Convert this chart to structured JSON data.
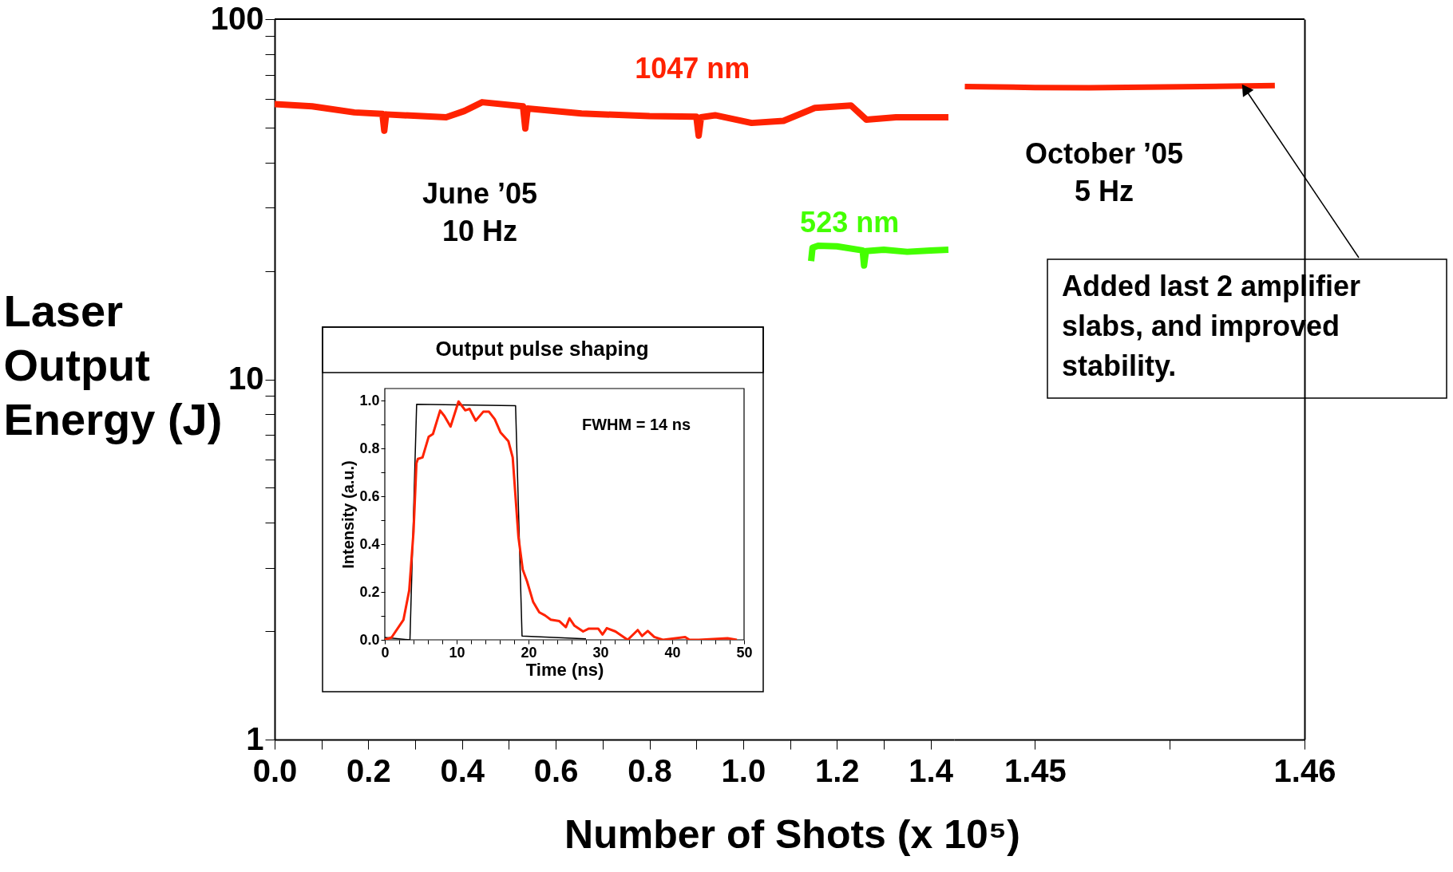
{
  "chart_data": [
    {
      "type": "line",
      "xlabel": "Number of Shots (x 10⁵)",
      "ylabel": "Laser Output Energy (J)",
      "log": "y",
      "grid": false,
      "xlim": [
        0,
        1.45
      ],
      "xticks": [
        {
          "value": 0,
          "label": "0.0"
        },
        {
          "value": 0.1,
          "label": null
        },
        0.2,
        {
          "value": 0.3,
          "label": null
        },
        0.4,
        {
          "value": 0.5,
          "label": null
        },
        0.6,
        {
          "value": 0.7,
          "label": null
        },
        0.8,
        {
          "value": 0.9,
          "label": null
        },
        {
          "value": 1,
          "label": "1.0"
        },
        {
          "value": 1.1,
          "label": null
        },
        1.2,
        {
          "value": 1.3,
          "label": null
        },
        1.4
      ],
      "ylim": [
        1,
        100
      ],
      "yticks": [
        1,
        {
          "value": 2,
          "label": null
        },
        {
          "value": 3,
          "label": null
        },
        {
          "value": 4,
          "label": null
        },
        {
          "value": 5,
          "label": null
        },
        {
          "value": 6,
          "label": null
        },
        {
          "value": 7,
          "label": null
        },
        {
          "value": 8,
          "label": null
        },
        {
          "value": 9,
          "label": null
        },
        10,
        {
          "value": 20,
          "label": null
        },
        {
          "value": 30,
          "label": null
        },
        {
          "value": 40,
          "label": null
        },
        {
          "value": 50,
          "label": null
        },
        {
          "value": 60,
          "label": null
        },
        {
          "value": 70,
          "label": null
        },
        {
          "value": 80,
          "label": null
        },
        {
          "value": 90,
          "label": null
        },
        100
      ],
      "series": [
        {
          "name": "1047 nm",
          "color": "#ff2200",
          "x": [
            0,
            0.08,
            0.17,
            0.23,
            0.234,
            0.238,
            0.366,
            0.405,
            0.443,
            0.53,
            0.535,
            0.54,
            0.655,
            0.8,
            0.9,
            0.905,
            0.91,
            0.94,
            1.018,
            1.086,
            1.153,
            1.23,
            1.263,
            1.326,
            1.438
          ],
          "values": [
            58.1,
            57.3,
            55.1,
            54.6,
            49,
            54.4,
            53.4,
            55.6,
            58.8,
            57.3,
            49.7,
            56.5,
            54.7,
            53.8,
            53.6,
            47.5,
            53.4,
            54.1,
            51.5,
            52.2,
            56.7,
            57.6,
            52.6,
            53.4,
            53.4
          ]
        },
        {
          "name": "523 nm",
          "color": "#44ff00",
          "x": [
            1.145,
            1.148,
            1.16,
            1.2,
            1.255,
            1.258,
            1.262,
            1.3,
            1.35,
            1.4,
            1.438
          ],
          "values": [
            21.3,
            23.2,
            23.5,
            23.4,
            22.8,
            20.7,
            22.7,
            22.9,
            22.6,
            22.8,
            22.9
          ]
        }
      ],
      "annotations": [
        "June ’05\n10 Hz"
      ]
    },
    {
      "type": "line",
      "log": "y",
      "grid": false,
      "tick_labels": "x",
      "xlim": [
        1.447,
        1.46
      ],
      "xticks": [
        1.45,
        {
          "value": 1.455,
          "label": null
        },
        1.46
      ],
      "ylim": [
        1,
        100
      ],
      "yticks": [
        1,
        10,
        100
      ],
      "series": [
        {
          "color": "#ff2200",
          "x": [
            1.4474,
            1.45,
            1.452,
            1.4555,
            1.4589
          ],
          "values": [
            65,
            64.6,
            64.5,
            64.9,
            65.4
          ]
        }
      ],
      "annotations": [
        "October ’05\n5 Hz",
        {
          "text": "Added last 2 amplifier slabs, and improved stability.",
          "x": 1.4578,
          "y": 64
        }
      ]
    },
    {
      "type": "line",
      "title": "Output pulse shaping",
      "xlabel": "Time (ns)",
      "ylabel": "Intensity (a.u.)",
      "grid": false,
      "xlim": [
        0,
        50
      ],
      "xticks": [
        0,
        {
          "value": 2,
          "label": null
        },
        {
          "value": 4,
          "label": null
        },
        {
          "value": 6,
          "label": null
        },
        {
          "value": 8,
          "label": null
        },
        10,
        {
          "value": 12,
          "label": null
        },
        {
          "value": 14,
          "label": null
        },
        {
          "value": 16,
          "label": null
        },
        {
          "value": 18,
          "label": null
        },
        20,
        {
          "value": 22,
          "label": null
        },
        {
          "value": 24,
          "label": null
        },
        {
          "value": 26,
          "label": null
        },
        {
          "value": 28,
          "label": null
        },
        30,
        {
          "value": 32,
          "label": null
        },
        {
          "value": 34,
          "label": null
        },
        {
          "value": 36,
          "label": null
        },
        {
          "value": 38,
          "label": null
        },
        40,
        {
          "value": 42,
          "label": null
        },
        {
          "value": 44,
          "label": null
        },
        {
          "value": 46,
          "label": null
        },
        {
          "value": 48,
          "label": null
        },
        50
      ],
      "ylim": [
        0,
        1.05
      ],
      "yticks": [
        {
          "value": 0,
          "label": "0.0"
        },
        {
          "value": 0.1,
          "label": null
        },
        0.2,
        {
          "value": 0.3,
          "label": null
        },
        0.4,
        {
          "value": 0.5,
          "label": null
        },
        0.6,
        {
          "value": 0.7,
          "label": null
        },
        0.8,
        {
          "value": 0.9,
          "label": null
        },
        {
          "value": 1,
          "label": "1.0"
        }
      ],
      "series": [
        {
          "color": "#000000",
          "x": [
            0,
            3.5,
            4.43,
            18.2,
            19.1,
            28.0
          ],
          "values": [
            0.01,
            0,
            0.984,
            0.978,
            0.016,
            0.004
          ]
        },
        {
          "color": "#ff2200",
          "x": [
            0,
            0.94,
            2.6,
            3.4,
            4.0,
            4.4,
            4.6,
            5.25,
            6.1,
            6.7,
            7.7,
            8.3,
            9.15,
            10.26,
            11.2,
            11.8,
            12.65,
            13.7,
            14.5,
            15.3,
            16.1,
            17.2,
            17.8,
            18.6,
            19.2,
            19.8,
            20.65,
            21.5,
            22.3,
            23.1,
            24.3,
            25.2,
            25.7,
            26.4,
            27.6,
            28.4,
            29.7,
            30.3,
            30.9,
            32.1,
            33.8,
            35.2,
            35.8,
            36.6,
            37.5,
            38.7,
            41.8,
            42.4,
            43.7,
            47.7,
            49
          ],
          "values": [
            0,
            0.01,
            0.084,
            0.207,
            0.454,
            0.737,
            0.756,
            0.762,
            0.848,
            0.86,
            0.958,
            0.935,
            0.891,
            0.996,
            0.959,
            0.965,
            0.916,
            0.953,
            0.953,
            0.922,
            0.867,
            0.83,
            0.762,
            0.429,
            0.293,
            0.244,
            0.158,
            0.115,
            0.102,
            0.084,
            0.078,
            0.053,
            0.09,
            0.059,
            0.035,
            0.047,
            0.047,
            0.022,
            0.049,
            0.035,
            0,
            0.041,
            0.016,
            0.037,
            0.012,
            0,
            0.012,
            0,
            0,
            0.007,
            0
          ]
        }
      ],
      "annotations": [
        "FWHM = 14 ns"
      ]
    }
  ]
}
